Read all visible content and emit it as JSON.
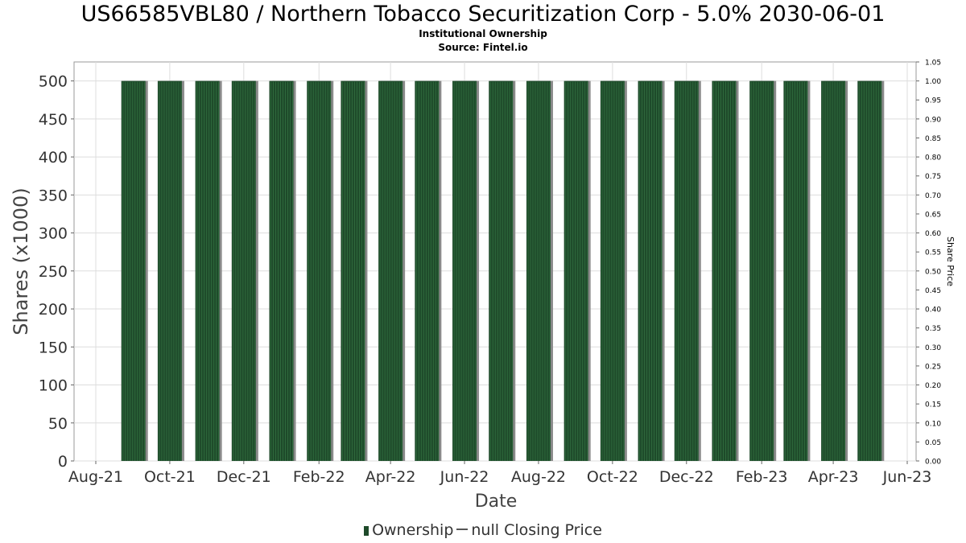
{
  "title": "US66585VBL80 / Northern Tobacco Securitization Corp - 5.0% 2030-06-01",
  "subtitle": "Institutional Ownership",
  "source": "Source: Fintel.io",
  "legend": {
    "ownership": "Ownership",
    "price": "null Closing Price"
  },
  "colors": {
    "bar": "#1e4a2a",
    "bar_shadow": "#8a8a8a",
    "grid": "#dddddd"
  },
  "chart_data": {
    "type": "bar",
    "xlabel": "Date",
    "ylabel": "Shares (x1000)",
    "y2label": "Share Price",
    "ylim": [
      0,
      525
    ],
    "y2lim": [
      0,
      1.05
    ],
    "grid": true,
    "legend_position": "bottom",
    "x_ticks": [
      "Aug-21",
      "Oct-21",
      "Dec-21",
      "Feb-22",
      "Apr-22",
      "Jun-22",
      "Aug-22",
      "Oct-22",
      "Dec-22",
      "Feb-23",
      "Apr-23",
      "Jun-23"
    ],
    "y_ticks": [
      0,
      50,
      100,
      150,
      200,
      250,
      300,
      350,
      400,
      450,
      500
    ],
    "y2_ticks": [
      "0.00",
      "0.05",
      "0.10",
      "0.15",
      "0.20",
      "0.25",
      "0.30",
      "0.35",
      "0.40",
      "0.45",
      "0.50",
      "0.55",
      "0.60",
      "0.65",
      "0.70",
      "0.75",
      "0.80",
      "0.85",
      "0.90",
      "0.95",
      "1.00",
      "1.05"
    ],
    "series": [
      {
        "name": "Ownership",
        "x": [
          "2021-09-01",
          "2021-10-01",
          "2021-11-01",
          "2021-12-01",
          "2022-01-01",
          "2022-02-01",
          "2022-03-01",
          "2022-04-01",
          "2022-05-01",
          "2022-06-01",
          "2022-07-01",
          "2022-08-01",
          "2022-09-01",
          "2022-10-01",
          "2022-11-01",
          "2022-12-01",
          "2023-01-01",
          "2023-02-01",
          "2023-03-01",
          "2023-04-01",
          "2023-05-01"
        ],
        "values": [
          500,
          500,
          500,
          500,
          500,
          500,
          500,
          500,
          500,
          500,
          500,
          500,
          500,
          500,
          500,
          500,
          500,
          500,
          500,
          500,
          500
        ]
      }
    ]
  }
}
